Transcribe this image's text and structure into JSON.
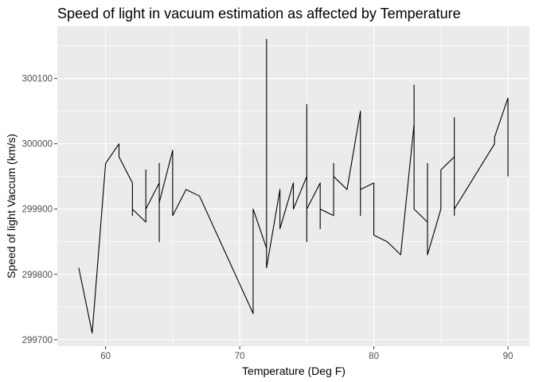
{
  "chart_data": {
    "type": "line",
    "title": "Speed of light in vacuum estimation as affected by Temperature",
    "xlabel": "Temperature (Deg F)",
    "ylabel": "Speed of light Vaccum (km/s)",
    "xlim": [
      56.4,
      91.6
    ],
    "ylim": [
      299690,
      300180
    ],
    "xticks": [
      60,
      70,
      80,
      90
    ],
    "yticks": [
      299700,
      299800,
      299900,
      300000,
      300100
    ],
    "xtick_labels": [
      "60",
      "70",
      "80",
      "90"
    ],
    "ytick_labels": [
      "299700",
      "299800",
      "299900",
      "300000",
      "300100"
    ],
    "grid": true,
    "legend": "none",
    "colors": {
      "panel": "#ebebeb",
      "grid": "#ffffff",
      "line": "#000000"
    },
    "series": [
      {
        "points": [
          [
            58,
            299810
          ],
          [
            59,
            299710
          ],
          [
            60,
            299970
          ],
          [
            61,
            300000
          ],
          [
            61,
            299980
          ],
          [
            62,
            299940
          ],
          [
            62,
            299890
          ],
          [
            62,
            299900
          ],
          [
            63,
            299880
          ],
          [
            63,
            299960
          ],
          [
            63,
            299900
          ],
          [
            64,
            299940
          ],
          [
            64,
            299850
          ],
          [
            64,
            299970
          ],
          [
            64,
            299910
          ],
          [
            65,
            299990
          ],
          [
            65,
            299890
          ],
          [
            66,
            299930
          ],
          [
            67,
            299920
          ],
          [
            71,
            299740
          ],
          [
            71,
            299900
          ],
          [
            72,
            299840
          ],
          [
            72,
            300160
          ],
          [
            72,
            299810
          ],
          [
            73,
            299930
          ],
          [
            73,
            299870
          ],
          [
            74,
            299940
          ],
          [
            74,
            299900
          ],
          [
            75,
            299950
          ],
          [
            75,
            300060
          ],
          [
            75,
            299850
          ],
          [
            75,
            299900
          ],
          [
            76,
            299940
          ],
          [
            76,
            299870
          ],
          [
            76,
            299900
          ],
          [
            77,
            299890
          ],
          [
            77,
            299970
          ],
          [
            77,
            299950
          ],
          [
            78,
            299930
          ],
          [
            79,
            300050
          ],
          [
            79,
            299890
          ],
          [
            79,
            299930
          ],
          [
            80,
            299940
          ],
          [
            80,
            299860
          ],
          [
            81,
            299850
          ],
          [
            82,
            299830
          ],
          [
            83,
            300030
          ],
          [
            83,
            300090
          ],
          [
            83,
            299900
          ],
          [
            84,
            299880
          ],
          [
            84,
            299970
          ],
          [
            84,
            299830
          ],
          [
            85,
            299900
          ],
          [
            85,
            299960
          ],
          [
            86,
            299980
          ],
          [
            86,
            300040
          ],
          [
            86,
            299890
          ],
          [
            86,
            299900
          ],
          [
            89,
            300000
          ],
          [
            89,
            300010
          ],
          [
            90,
            300070
          ],
          [
            90,
            299950
          ]
        ]
      }
    ]
  }
}
